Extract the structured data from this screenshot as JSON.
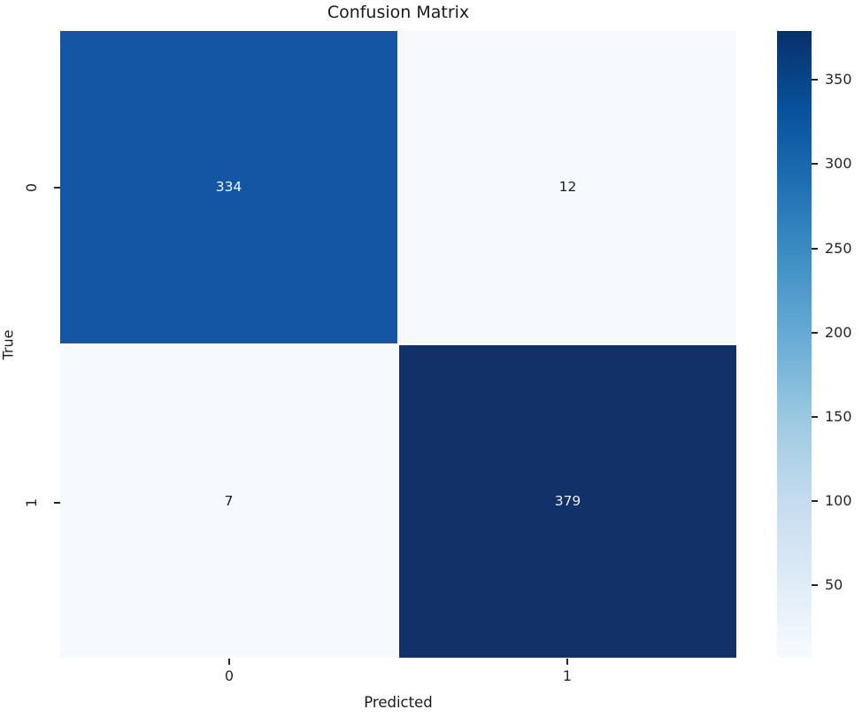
{
  "chart_data": {
    "type": "heatmap",
    "title": "Confusion Matrix",
    "xlabel": "Predicted",
    "ylabel": "True",
    "x_tick_labels": [
      "0",
      "1"
    ],
    "y_tick_labels": [
      "0",
      "1"
    ],
    "matrix": [
      [
        334,
        12
      ],
      [
        7,
        379
      ]
    ],
    "vmin": 7,
    "vmax": 379,
    "colorbar_ticks": [
      50,
      100,
      150,
      200,
      250,
      300,
      350
    ],
    "colormap": "Blues",
    "colormap_stops_bottom_to_top": [
      "#f7fbff",
      "#deebf7",
      "#c6dbef",
      "#9ecae1",
      "#6baed6",
      "#4292c6",
      "#2171b5",
      "#08519c",
      "#08306b"
    ],
    "cell_colors": [
      [
        "#1556a4",
        "#f6f9fe"
      ],
      [
        "#f6f9fe",
        "#123168"
      ]
    ],
    "cell_text_colors": [
      [
        "#f2f6fc",
        "#1c1c28"
      ],
      [
        "#1c1c28",
        "#e9eef7"
      ]
    ],
    "axis_tick_color": "#262626",
    "title_color": "#1a1a1a",
    "legend_position": "right-colorbar",
    "grid": false
  }
}
